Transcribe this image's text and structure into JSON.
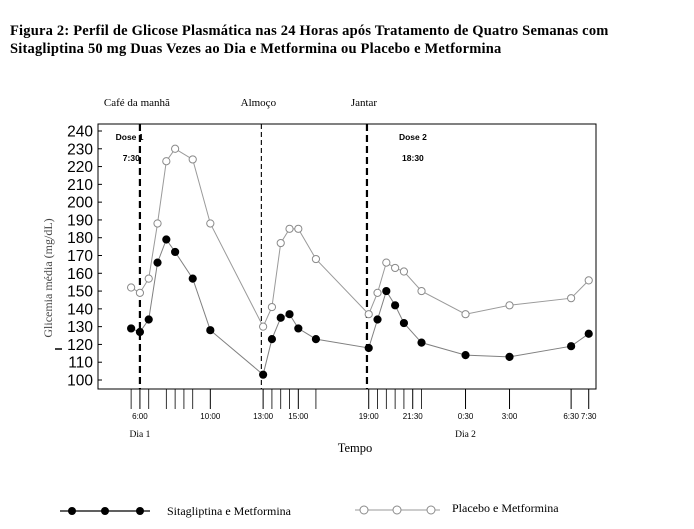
{
  "figure": {
    "title_line1": "Figura 2: Perfil de Glicose Plasmática nas 24 Horas após Tratamento de Quatro Semanas com",
    "title_line2": "Sitagliptina 50 mg Duas Vezes   ao Dia e Metformina ou Placebo e Metformina"
  },
  "chart_data": {
    "type": "line",
    "xlabel": "Tempo",
    "ylabel": "Glicemia média (mg/dL)",
    "ylim": [
      100,
      240
    ],
    "yticks": [
      100,
      110,
      120,
      130,
      140,
      150,
      160,
      170,
      180,
      190,
      200,
      210,
      220,
      230,
      240
    ],
    "xlim": [
      4.3,
      31.8
    ],
    "xticks": [
      {
        "x": 6.0,
        "label": "6:00"
      },
      {
        "x": 10.0,
        "label": "10:00"
      },
      {
        "x": 13.0,
        "label": "13:00"
      },
      {
        "x": 15.0,
        "label": "15:00"
      },
      {
        "x": 19.0,
        "label": "19:00"
      },
      {
        "x": 21.5,
        "label": "21:30"
      },
      {
        "x": 24.5,
        "label": "0:30"
      },
      {
        "x": 27.0,
        "label": "3:00"
      },
      {
        "x": 30.5,
        "label": "6:30"
      },
      {
        "x": 31.5,
        "label": "7:30"
      }
    ],
    "minor_ticks": [
      5.5,
      6.5,
      7.5,
      8.0,
      8.5,
      9.0,
      13.5,
      14.0,
      14.5,
      16.0,
      19.5,
      20.0,
      20.5,
      21.0,
      22.0
    ],
    "day_labels": [
      {
        "x": 6.0,
        "label": "Dia 1"
      },
      {
        "x": 24.5,
        "label": "Dia 2"
      }
    ],
    "events": [
      {
        "x": 6.0,
        "label": "Café da manhã",
        "style": "thick-dash"
      },
      {
        "x": 12.9,
        "label": "Almoço",
        "style": "thin-dash"
      },
      {
        "x": 18.9,
        "label": "Jantar",
        "style": "thick-dash"
      }
    ],
    "annotations": [
      {
        "x": 4.9,
        "y": 235,
        "text": "Dose 1"
      },
      {
        "x": 5.0,
        "y": 223,
        "text": "7:30"
      },
      {
        "x": 21.0,
        "y": 235,
        "text": "Dose 2"
      },
      {
        "x": 21.0,
        "y": 223,
        "text": "18:30"
      }
    ],
    "legend_position": "bottom",
    "series": [
      {
        "name": "Sitagliptina e Metformina",
        "marker": "filled-circle",
        "line_color": "#808080",
        "marker_color": "#000000",
        "x": [
          5.5,
          6.0,
          6.5,
          7.0,
          7.5,
          8.0,
          9.0,
          10.0,
          13.0,
          13.5,
          14.0,
          14.5,
          15.0,
          16.0,
          19.0,
          19.5,
          20.0,
          20.5,
          21.0,
          22.0,
          24.5,
          27.0,
          30.5,
          31.5
        ],
        "values": [
          129,
          127,
          134,
          166,
          179,
          172,
          157,
          128,
          103,
          123,
          135,
          137,
          129,
          123,
          118,
          134,
          150,
          142,
          132,
          121,
          114,
          113,
          119,
          126
        ]
      },
      {
        "name": "Placebo e Metformina",
        "marker": "open-circle",
        "line_color": "#9a9a9a",
        "marker_color": "#8a8a8a",
        "x": [
          5.5,
          6.0,
          6.5,
          7.0,
          7.5,
          8.0,
          9.0,
          10.0,
          13.0,
          13.5,
          14.0,
          14.5,
          15.0,
          16.0,
          19.0,
          19.5,
          20.0,
          20.5,
          21.0,
          22.0,
          24.5,
          27.0,
          30.5,
          31.5
        ],
        "values": [
          152,
          149,
          157,
          188,
          223,
          230,
          224,
          188,
          130,
          141,
          177,
          185,
          185,
          168,
          137,
          149,
          166,
          163,
          161,
          150,
          137,
          142,
          146,
          156
        ]
      }
    ]
  }
}
